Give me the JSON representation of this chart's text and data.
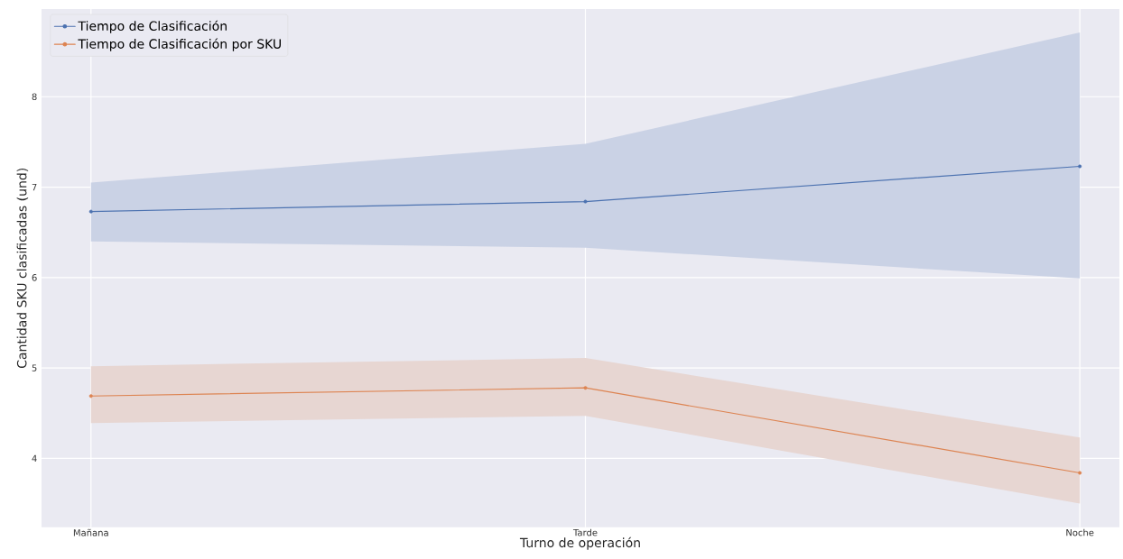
{
  "chart_data": {
    "type": "line",
    "xlabel": "Turno de operación",
    "ylabel": "Cantidad SKU clasificadas (und)",
    "categories": [
      "Mañana",
      "Tarde",
      "Noche"
    ],
    "series": [
      {
        "name": "Tiempo de Clasificación",
        "color": "#4c72b0",
        "values": [
          6.73,
          6.84,
          7.23
        ],
        "lower": [
          6.4,
          6.33,
          5.99
        ],
        "upper": [
          7.05,
          7.48,
          8.71
        ]
      },
      {
        "name": "Tiempo de Clasificación por SKU",
        "color": "#dd8452",
        "values": [
          4.69,
          4.78,
          3.84
        ],
        "lower": [
          4.39,
          4.47,
          3.5
        ],
        "upper": [
          5.02,
          5.11,
          4.23
        ]
      }
    ],
    "ylim": [
      3.24,
      8.97
    ],
    "yticks": [
      4,
      5,
      6,
      7,
      8
    ],
    "grid": true,
    "legend": "top left",
    "marker": "circle",
    "line_style": "solid"
  }
}
